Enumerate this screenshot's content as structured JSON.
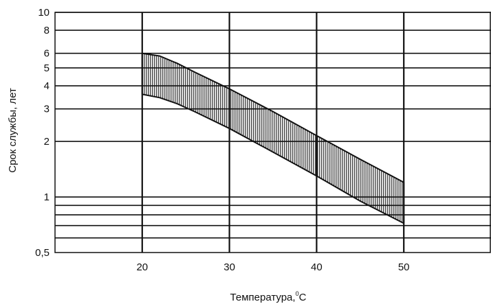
{
  "chart_data": {
    "type": "area",
    "xlabel": "Температура,",
    "xlabel_sup": "0",
    "xlabel_unit": "С",
    "ylabel": "Срок службы, лет",
    "x_ticks": [
      20,
      30,
      40,
      50
    ],
    "x_tick_labels": [
      "20",
      "30",
      "40",
      "50"
    ],
    "x_gridlines": [
      20,
      30,
      40,
      50
    ],
    "xlim": [
      10,
      60
    ],
    "y_scale": "log",
    "ylim": [
      0.5,
      10
    ],
    "y_ticks": [
      0.5,
      1,
      2,
      3,
      4,
      5,
      6,
      8,
      10
    ],
    "y_tick_labels": [
      "0,5",
      "1",
      "2",
      "3",
      "4",
      "5",
      "6",
      "8",
      "10"
    ],
    "y_gridlines": [
      0.6,
      0.7,
      0.8,
      0.9,
      1,
      2,
      3,
      4,
      5,
      6,
      8,
      10
    ],
    "grid": true,
    "band": {
      "fill": "vertical-hatch",
      "upper": [
        {
          "x": 20,
          "y": 6.0
        },
        {
          "x": 22,
          "y": 5.8
        },
        {
          "x": 24,
          "y": 5.3
        },
        {
          "x": 26,
          "y": 4.75
        },
        {
          "x": 30,
          "y": 3.85
        },
        {
          "x": 35,
          "y": 2.9
        },
        {
          "x": 40,
          "y": 2.15
        },
        {
          "x": 45,
          "y": 1.6
        },
        {
          "x": 50,
          "y": 1.2
        }
      ],
      "lower": [
        {
          "x": 20,
          "y": 3.6
        },
        {
          "x": 22,
          "y": 3.45
        },
        {
          "x": 24,
          "y": 3.2
        },
        {
          "x": 26,
          "y": 2.9
        },
        {
          "x": 30,
          "y": 2.35
        },
        {
          "x": 35,
          "y": 1.75
        },
        {
          "x": 40,
          "y": 1.3
        },
        {
          "x": 45,
          "y": 0.95
        },
        {
          "x": 50,
          "y": 0.72
        }
      ]
    },
    "colors": {
      "line": "#111111",
      "background": "#ffffff"
    }
  }
}
